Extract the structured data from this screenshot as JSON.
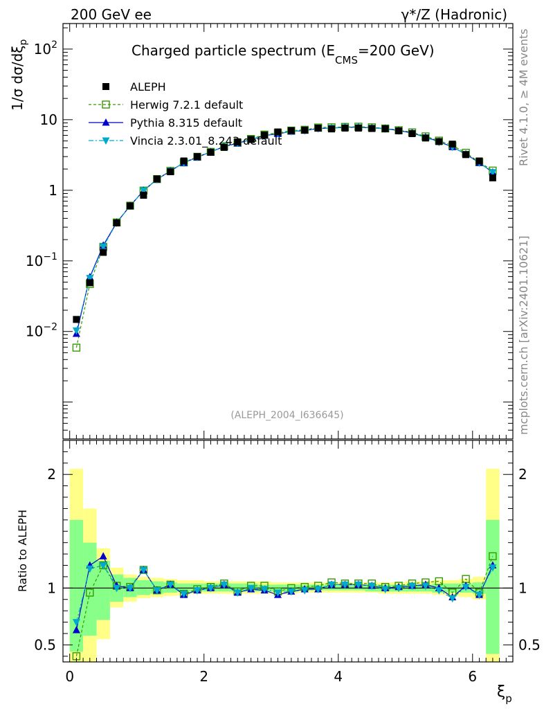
{
  "header": {
    "left": "200 GeV ee",
    "right": "γ*/Z (Hadronic)"
  },
  "side_text": {
    "rivet": "Rivet 4.1.0, ≥ 4M events",
    "mcplots": "mcplots.cern.ch [arXiv:2401.10621]"
  },
  "chart_data": {
    "type": "scatter",
    "title_parts": {
      "main": "Charged particle spectrum (E",
      "sub": "CMS",
      "tail": "=200 GeV)"
    },
    "analysis_id": "(ALEPH_2004_I636645)",
    "xlabel": {
      "main": "ξ",
      "sub": "p"
    },
    "ylabel": {
      "lead": "1/σ",
      "main": "dσ/dξ",
      "sub": "p"
    },
    "ratio_ylabel": "Ratio to ALEPH",
    "xlim": [
      -0.1,
      6.6
    ],
    "ylim_log": [
      0.0003,
      230
    ],
    "ratio_ylim": [
      0.35,
      2.3
    ],
    "x_ticks": [
      0,
      2,
      4,
      6
    ],
    "y_ticks_main": [
      {
        "value": 0.01,
        "label": "10",
        "exp": "−2"
      },
      {
        "value": 0.1,
        "label": "10",
        "exp": "−1"
      },
      {
        "value": 1,
        "label": "1",
        "exp": ""
      },
      {
        "value": 10,
        "label": "10",
        "exp": ""
      },
      {
        "value": 100,
        "label": "10",
        "exp": "2"
      }
    ],
    "y_ticks_ratio": [
      0.5,
      1,
      2
    ],
    "bin_edges": [
      0,
      0.2,
      0.4,
      0.6,
      0.8,
      1.0,
      1.2,
      1.4,
      1.6,
      1.8,
      2.0,
      2.2,
      2.4,
      2.6,
      2.8,
      3.0,
      3.2,
      3.4,
      3.6,
      3.8,
      4.0,
      4.2,
      4.4,
      4.6,
      4.8,
      5.0,
      5.2,
      5.4,
      5.6,
      5.8,
      6.0,
      6.2,
      6.4
    ],
    "x": [
      0.1,
      0.3,
      0.5,
      0.7,
      0.9,
      1.1,
      1.3,
      1.5,
      1.7,
      1.9,
      2.1,
      2.3,
      2.5,
      2.7,
      2.9,
      3.1,
      3.3,
      3.5,
      3.7,
      3.9,
      4.1,
      4.3,
      4.5,
      4.7,
      4.9,
      5.1,
      5.3,
      5.5,
      5.7,
      5.9,
      6.1,
      6.3
    ],
    "series": [
      {
        "name": "ALEPH",
        "color": "#000000",
        "marker": "square-filled",
        "values": [
          0.0148,
          0.049,
          0.132,
          0.345,
          0.6,
          0.85,
          1.45,
          1.83,
          2.6,
          3.0,
          3.45,
          4.05,
          4.85,
          5.25,
          6.05,
          6.7,
          7.0,
          7.1,
          7.6,
          7.4,
          7.6,
          7.6,
          7.5,
          7.45,
          6.95,
          6.35,
          5.5,
          4.9,
          4.5,
          3.2,
          2.6,
          1.5
        ]
      },
      {
        "name": "Herwig 7.2.1 default",
        "color": "#339900",
        "marker": "square-open",
        "line": "dashed",
        "values": [
          0.0059,
          0.047,
          0.158,
          0.35,
          0.605,
          0.99,
          1.44,
          1.88,
          2.48,
          2.98,
          3.5,
          4.2,
          4.7,
          5.33,
          6.15,
          6.5,
          7.0,
          7.2,
          7.75,
          7.8,
          7.9,
          7.95,
          7.8,
          7.5,
          7.1,
          6.6,
          5.8,
          5.05,
          4.3,
          3.4,
          2.5,
          1.9
        ]
      },
      {
        "name": "Pythia 8.315 default",
        "color": "#0000cc",
        "marker": "triangle-up",
        "line": "solid",
        "values": [
          0.0093,
          0.059,
          0.166,
          0.35,
          0.6,
          0.99,
          1.42,
          1.88,
          2.45,
          2.93,
          3.5,
          4.15,
          4.65,
          5.2,
          5.95,
          6.3,
          6.8,
          7.0,
          7.5,
          7.6,
          7.8,
          7.8,
          7.65,
          7.5,
          7.0,
          6.5,
          5.65,
          4.9,
          4.1,
          3.25,
          2.45,
          1.8
        ]
      },
      {
        "name": "Vincia 2.3.01_8.243 default",
        "color": "#00aacc",
        "marker": "triangle-down",
        "line": "dashdot",
        "values": [
          0.0103,
          0.057,
          0.16,
          0.345,
          0.6,
          0.99,
          1.42,
          1.88,
          2.46,
          2.94,
          3.48,
          4.15,
          4.68,
          5.25,
          6.0,
          6.4,
          6.8,
          7.0,
          7.5,
          7.65,
          7.8,
          7.8,
          7.65,
          7.4,
          6.95,
          6.45,
          5.6,
          4.8,
          4.1,
          3.25,
          2.45,
          1.8
        ]
      }
    ],
    "ratios": [
      {
        "name": "Herwig 7.2.1 default",
        "values": [
          0.4,
          0.96,
          1.2,
          1.02,
          1.01,
          1.16,
          0.98,
          1.03,
          0.95,
          0.99,
          1.01,
          1.04,
          0.97,
          1.02,
          1.02,
          0.97,
          1.0,
          1.01,
          1.02,
          1.05,
          1.04,
          1.04,
          1.04,
          1.01,
          1.02,
          1.04,
          1.05,
          1.06,
          0.96,
          1.08,
          0.96,
          1.28
        ]
      },
      {
        "name": "Pythia 8.315 default",
        "values": [
          0.63,
          1.2,
          1.28,
          1.02,
          1.0,
          1.16,
          0.98,
          1.03,
          0.94,
          0.98,
          1.0,
          1.03,
          0.96,
          0.99,
          0.98,
          0.94,
          0.97,
          0.99,
          0.99,
          1.03,
          1.03,
          1.03,
          1.02,
          1.0,
          1.01,
          1.02,
          1.03,
          1.0,
          0.92,
          1.02,
          0.94,
          1.2
        ]
      },
      {
        "name": "Vincia 2.3.01_8.243 default",
        "values": [
          0.7,
          1.17,
          1.2,
          1.0,
          1.0,
          1.16,
          0.98,
          1.03,
          0.95,
          0.98,
          1.0,
          1.03,
          0.96,
          1.0,
          0.99,
          0.96,
          0.97,
          0.98,
          0.99,
          1.03,
          1.03,
          1.03,
          1.02,
          0.99,
          1.0,
          1.02,
          1.02,
          0.98,
          0.91,
          1.01,
          0.94,
          1.18
        ]
      }
    ],
    "uncertainty": {
      "green_hi": [
        1.6,
        1.4,
        1.24,
        1.12,
        1.09,
        1.07,
        1.06,
        1.05,
        1.04,
        1.04,
        1.04,
        1.04,
        1.04,
        1.04,
        1.03,
        1.03,
        1.03,
        1.03,
        1.03,
        1.03,
        1.03,
        1.03,
        1.03,
        1.03,
        1.03,
        1.03,
        1.03,
        1.04,
        1.04,
        1.04,
        1.05,
        1.6
      ],
      "green_lo": [
        0.44,
        0.58,
        0.72,
        0.88,
        0.92,
        0.94,
        0.95,
        0.96,
        0.97,
        0.97,
        0.97,
        0.97,
        0.97,
        0.97,
        0.97,
        0.97,
        0.97,
        0.98,
        0.98,
        0.98,
        0.98,
        0.98,
        0.97,
        0.97,
        0.97,
        0.97,
        0.97,
        0.96,
        0.96,
        0.96,
        0.95,
        0.42
      ],
      "yellow_hi": [
        2.05,
        1.7,
        1.35,
        1.18,
        1.12,
        1.1,
        1.09,
        1.08,
        1.07,
        1.07,
        1.06,
        1.06,
        1.06,
        1.06,
        1.06,
        1.05,
        1.05,
        1.05,
        1.05,
        1.05,
        1.05,
        1.05,
        1.05,
        1.05,
        1.05,
        1.06,
        1.06,
        1.07,
        1.07,
        1.08,
        1.1,
        2.05
      ],
      "yellow_lo": [
        0.3,
        0.3,
        0.55,
        0.83,
        0.88,
        0.91,
        0.92,
        0.93,
        0.94,
        0.95,
        0.95,
        0.95,
        0.95,
        0.95,
        0.95,
        0.95,
        0.95,
        0.96,
        0.96,
        0.96,
        0.96,
        0.96,
        0.96,
        0.95,
        0.95,
        0.95,
        0.95,
        0.94,
        0.93,
        0.92,
        0.9,
        0.3
      ]
    }
  }
}
